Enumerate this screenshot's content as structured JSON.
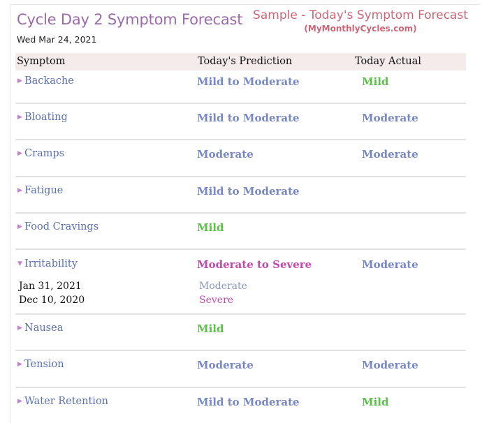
{
  "header": {
    "title": "Cycle Day 2 Symptom Forecast",
    "date": "Wed Mar 24, 2021",
    "sample_line1": "Sample - Today's Symptom Forecast",
    "sample_line2": "(MyMonthlyCycles.com)"
  },
  "table": {
    "columns": [
      "Symptom",
      "Today's Prediction",
      "Today Actual"
    ],
    "rows": [
      {
        "symptom": "Backache",
        "prediction": "Mild to Moderate",
        "actual": "Mild"
      },
      {
        "symptom": "Bloating",
        "prediction": "Mild to Moderate",
        "actual": "Moderate"
      },
      {
        "symptom": "Cramps",
        "prediction": "Moderate",
        "actual": "Moderate"
      },
      {
        "symptom": "Fatigue",
        "prediction": "Mild to Moderate",
        "actual": ""
      },
      {
        "symptom": "Food Cravings",
        "prediction": "Mild",
        "actual": ""
      },
      {
        "symptom": "Irritability",
        "prediction": "Moderate to Severe",
        "actual": "Moderate",
        "history": [
          {
            "date": "Jan 31, 2021",
            "value": "Moderate"
          },
          {
            "date": "Dec 10, 2020",
            "value": "Severe"
          }
        ]
      },
      {
        "symptom": "Nausea",
        "prediction": "Mild",
        "actual": ""
      },
      {
        "symptom": "Tension",
        "prediction": "Moderate",
        "actual": "Moderate"
      },
      {
        "symptom": "Water Retention",
        "prediction": "Mild to Moderate",
        "actual": "Mild"
      }
    ]
  },
  "colors": {
    "title": "#9a6aaa",
    "sample": "#cc6677",
    "symptom_link": "#5a70b0",
    "mild_to_moderate": "#7888c4",
    "moderate": "#7888c4",
    "mild": "#5cc04a",
    "moderate_to_severe": "#c24aac",
    "arrow": "#c87ed6",
    "header_bg": "#f4ecea"
  },
  "icons": {
    "collapsed": "triangle-right-icon",
    "expanded": "triangle-down-icon"
  }
}
